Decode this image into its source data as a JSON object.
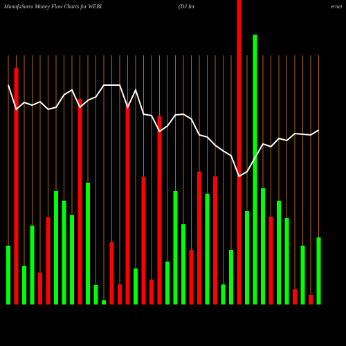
{
  "chart_data": {
    "type": "bar",
    "title": "MunafaSutra  Money Flow  Charts for WEBL",
    "subtitle": "(DJ Int",
    "subtitle_end": "ernet",
    "ylim": [
      0,
      440
    ],
    "grid": true,
    "grid_color": "#b8650a",
    "categories": [
      null,
      null,
      null,
      null,
      null,
      null,
      null,
      null,
      null,
      null,
      null,
      null,
      null,
      null,
      null,
      null,
      null,
      null,
      null,
      null,
      null,
      null,
      null,
      null,
      null,
      null,
      null,
      null,
      null,
      null,
      null,
      null,
      null,
      null,
      null,
      null,
      null,
      null,
      null,
      null
    ],
    "series": [
      {
        "name": null,
        "type": "bar",
        "values": [
          85,
          342,
          56,
          114,
          46,
          126,
          164,
          150,
          129,
          297,
          176,
          28,
          6,
          90,
          29,
          292,
          52,
          184,
          36,
          272,
          62,
          164,
          116,
          79,
          192,
          160,
          185,
          29,
          79,
          440,
          135,
          390,
          168,
          127,
          150,
          125,
          22,
          85,
          14,
          97
        ],
        "colors": [
          "#00ff00",
          "#ff0000",
          "#00ff00",
          "#00ff00",
          "#ff0000",
          "#ff0000",
          "#00ff00",
          "#00ff00",
          "#00ff00",
          "#ff0000",
          "#00ff00",
          "#00ff00",
          "#00ff00",
          "#ff0000",
          "#ff0000",
          "#ff0000",
          "#00ff00",
          "#ff0000",
          "#ff0000",
          "#ff0000",
          "#00ff00",
          "#00ff00",
          "#00ff00",
          "#ff0000",
          "#ff0000",
          "#00ff00",
          "#ff0000",
          "#00ff00",
          "#00ff00",
          "#ff0000",
          "#00ff00",
          "#00ff00",
          "#00ff00",
          "#ff0000",
          "#00ff00",
          "#00ff00",
          "#ff0000",
          "#00ff00",
          "#ff0000",
          "#00ff00"
        ]
      },
      {
        "name": null,
        "type": "line",
        "color": "#ffffff",
        "values": [
          317,
          282,
          292,
          288,
          293,
          282,
          285,
          303,
          310,
          285,
          295,
          300,
          317,
          317,
          317,
          285,
          310,
          275,
          273,
          250,
          258,
          274,
          275,
          268,
          245,
          242,
          230,
          222,
          215,
          185,
          192,
          212,
          232,
          228,
          240,
          237,
          247,
          246,
          245,
          252
        ]
      }
    ]
  }
}
